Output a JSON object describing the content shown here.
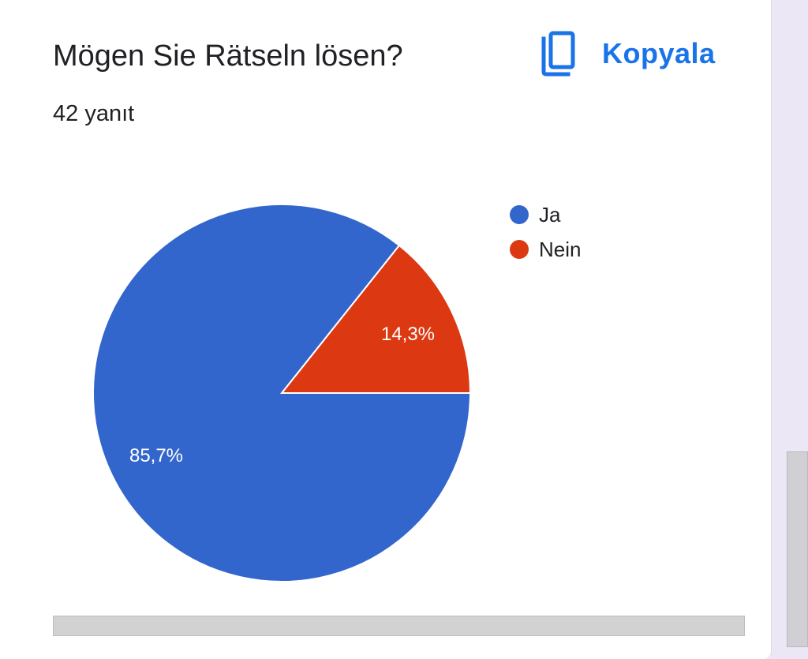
{
  "question": {
    "title": "Mögen Sie Rätseln lösen?",
    "response_count": "42 yanıt"
  },
  "toolbar": {
    "copy_label": "Kopyala",
    "copy_icon": "copy-icon"
  },
  "colors": {
    "accent": "#1a73e8",
    "ja": "#3366cc",
    "nein": "#dc3912"
  },
  "chart_data": {
    "type": "pie",
    "categories": [
      "Ja",
      "Nein"
    ],
    "values": [
      85.7,
      14.3
    ],
    "labels": [
      "85,7%",
      "14,3%"
    ],
    "colors": [
      "#3366cc",
      "#dc3912"
    ],
    "legend_position": "right"
  }
}
